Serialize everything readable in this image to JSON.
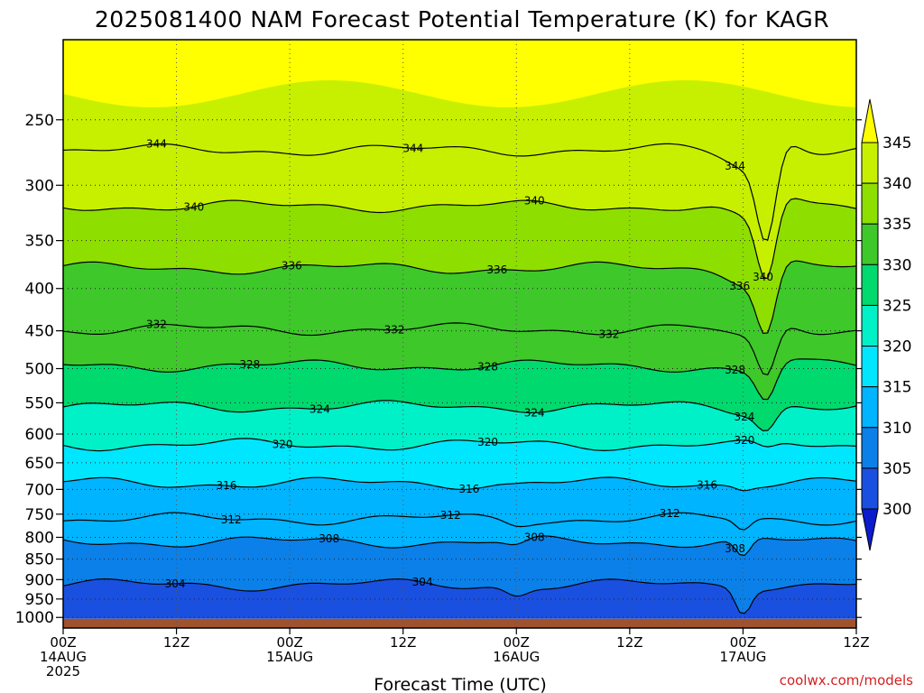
{
  "chart_data": {
    "type": "heatmap",
    "title": "2025081400 NAM Forecast Potential Temperature (K) for KAGR",
    "xlabel": "Forecast Time (UTC)",
    "ylabel": "",
    "x_ticks": [
      {
        "hour": 0,
        "lines": [
          "00Z",
          "14AUG",
          "2025"
        ]
      },
      {
        "hour": 12,
        "lines": [
          "12Z"
        ]
      },
      {
        "hour": 24,
        "lines": [
          "00Z",
          "15AUG"
        ]
      },
      {
        "hour": 36,
        "lines": [
          "12Z"
        ]
      },
      {
        "hour": 48,
        "lines": [
          "00Z",
          "16AUG"
        ]
      },
      {
        "hour": 60,
        "lines": [
          "12Z"
        ]
      },
      {
        "hour": 72,
        "lines": [
          "00Z",
          "17AUG"
        ]
      },
      {
        "hour": 84,
        "lines": [
          "12Z"
        ]
      }
    ],
    "x_range_hours": [
      0,
      84
    ],
    "y_ticks": [
      250,
      300,
      350,
      400,
      450,
      500,
      550,
      600,
      650,
      700,
      750,
      800,
      850,
      900,
      950,
      1000
    ],
    "y_range_hpa": [
      200,
      1030
    ],
    "y_scale": "log",
    "grid": true,
    "contour_interval_K": 4,
    "contour_levels": [
      {
        "theta": 304,
        "base_p": 913,
        "label_hours": [
          12,
          38
        ]
      },
      {
        "theta": 308,
        "base_p": 810,
        "label_hours": [
          28,
          50,
          71
        ]
      },
      {
        "theta": 312,
        "base_p": 760,
        "label_hours": [
          18,
          41,
          64
        ]
      },
      {
        "theta": 316,
        "base_p": 688,
        "label_hours": [
          17.5,
          43,
          68
        ]
      },
      {
        "theta": 320,
        "base_p": 618,
        "label_hours": [
          23,
          45,
          72
        ]
      },
      {
        "theta": 324,
        "base_p": 556,
        "label_hours": [
          27,
          50,
          72
        ]
      },
      {
        "theta": 328,
        "base_p": 496,
        "label_hours": [
          20,
          45,
          71
        ]
      },
      {
        "theta": 332,
        "base_p": 448,
        "label_hours": [
          10,
          35,
          58
        ]
      },
      {
        "theta": 336,
        "base_p": 378,
        "label_hours": [
          24,
          46,
          71.5
        ]
      },
      {
        "theta": 340,
        "base_p": 318,
        "label_hours": [
          14,
          50,
          74
        ]
      },
      {
        "theta": 344,
        "base_p": 272,
        "label_hours": [
          10,
          37,
          71
        ]
      }
    ],
    "colorbar": {
      "labels": [
        "345",
        "340",
        "335",
        "330",
        "325",
        "320",
        "315",
        "310",
        "305",
        "300"
      ],
      "bins": [
        {
          "lo": 345,
          "color": "#ffff00"
        },
        {
          "lo": 340,
          "color": "#c6f000"
        },
        {
          "lo": 335,
          "color": "#8ede00"
        },
        {
          "lo": 330,
          "color": "#3ec82a"
        },
        {
          "lo": 325,
          "color": "#00d96e"
        },
        {
          "lo": 320,
          "color": "#00f0c8"
        },
        {
          "lo": 315,
          "color": "#00e6ff"
        },
        {
          "lo": 310,
          "color": "#00b4ff"
        },
        {
          "lo": 305,
          "color": "#0a80e8"
        },
        {
          "lo": 300,
          "color": "#1a50e0"
        },
        {
          "lo": 0,
          "color": "#0a1ccc"
        }
      ]
    },
    "ground_color": "#a0522d"
  },
  "credit": "coolwx.com/models"
}
